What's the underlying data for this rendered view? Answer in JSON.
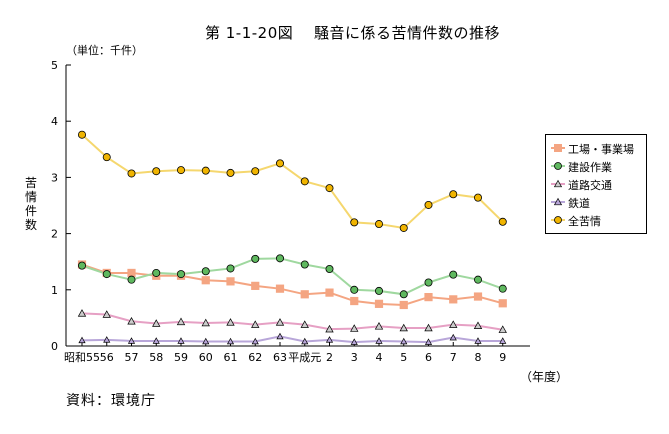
{
  "header": {
    "title": "第 1-1-20図　 騒音に係る苦情件数の推移",
    "unit": "（単位：千件）",
    "source": "資料：環境庁"
  },
  "chart_data": {
    "type": "line",
    "ylabel": "苦情件数",
    "xlabel": "（年度）",
    "ylim": [
      0,
      5
    ],
    "yticks": [
      "0",
      "1",
      "2",
      "3",
      "4",
      "5"
    ],
    "categories": [
      "昭和55",
      "56",
      "57",
      "58",
      "59",
      "60",
      "61",
      "62",
      "63",
      "平成元",
      "2",
      "3",
      "4",
      "5",
      "6",
      "7",
      "8",
      "9"
    ],
    "legend_position": "right",
    "grid": false,
    "series": [
      {
        "name": "工場・事業場",
        "marker": "square",
        "color": "#f4a582",
        "markerFill": "#f4a582",
        "values": [
          1.45,
          1.3,
          1.3,
          1.25,
          1.25,
          1.17,
          1.15,
          1.07,
          1.02,
          0.92,
          0.95,
          0.8,
          0.75,
          0.73,
          0.87,
          0.83,
          0.88,
          0.76
        ]
      },
      {
        "name": "建設作業",
        "marker": "circle",
        "color": "#9fd89f",
        "markerFill": "#5fb85f",
        "values": [
          1.43,
          1.28,
          1.18,
          1.3,
          1.28,
          1.33,
          1.38,
          1.55,
          1.56,
          1.45,
          1.37,
          1.0,
          0.98,
          0.92,
          1.13,
          1.27,
          1.18,
          1.02
        ]
      },
      {
        "name": "道路交通",
        "marker": "triangle",
        "color": "#e6a0c4",
        "markerFill": "#cccccc",
        "values": [
          0.58,
          0.56,
          0.44,
          0.4,
          0.43,
          0.41,
          0.42,
          0.38,
          0.42,
          0.38,
          0.3,
          0.31,
          0.35,
          0.32,
          0.32,
          0.38,
          0.36,
          0.29
        ]
      },
      {
        "name": "鉄道",
        "marker": "triangle",
        "color": "#b8a6d9",
        "markerFill": "#b8a6d9",
        "values": [
          0.1,
          0.11,
          0.09,
          0.09,
          0.09,
          0.08,
          0.08,
          0.08,
          0.17,
          0.08,
          0.11,
          0.07,
          0.09,
          0.08,
          0.07,
          0.15,
          0.09,
          0.09
        ]
      },
      {
        "name": "全苦情",
        "marker": "circle",
        "color": "#f5d76e",
        "markerFill": "#f0b400",
        "values": [
          3.76,
          3.36,
          3.07,
          3.11,
          3.13,
          3.12,
          3.08,
          3.11,
          3.25,
          2.93,
          2.81,
          2.2,
          2.17,
          2.1,
          2.51,
          2.7,
          2.64,
          2.21
        ]
      }
    ]
  }
}
